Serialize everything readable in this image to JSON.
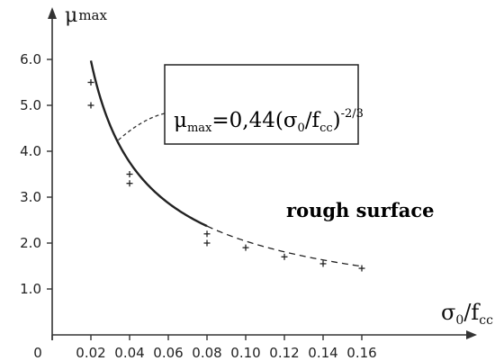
{
  "chart_data": {
    "type": "scatter",
    "title": "",
    "xlabel": {
      "main": "σ",
      "sub1": "0",
      "sep": "/f",
      "sub2": "cc"
    },
    "ylabel": {
      "main": "μ",
      "sub": "max"
    },
    "xlim": [
      0,
      0.17
    ],
    "ylim": [
      0,
      6.0
    ],
    "x_ticks": [
      "0",
      "0.02",
      "0.04",
      "0.06",
      "0.08",
      "0.10",
      "0.12",
      "0.14",
      "0.16"
    ],
    "y_ticks": [
      "1.0",
      "2.0",
      "3.0",
      "4.0",
      "5.0",
      "6.0"
    ],
    "points": [
      {
        "x": 0.02,
        "y": 5.5
      },
      {
        "x": 0.02,
        "y": 5.0
      },
      {
        "x": 0.04,
        "y": 3.3
      },
      {
        "x": 0.04,
        "y": 3.5
      },
      {
        "x": 0.08,
        "y": 2.2
      },
      {
        "x": 0.08,
        "y": 2.0
      },
      {
        "x": 0.1,
        "y": 1.9
      },
      {
        "x": 0.12,
        "y": 1.7
      },
      {
        "x": 0.14,
        "y": 1.55
      },
      {
        "x": 0.16,
        "y": 1.45
      }
    ],
    "fit": {
      "coefficient": 0.44,
      "exponent": -0.6667,
      "solid_range": [
        0.02,
        0.08
      ],
      "dashed_range": [
        0.08,
        0.16
      ]
    },
    "annotation": {
      "prefix": "μ",
      "prefix_sub": "max",
      "eq": "=0,44(σ",
      "sub1": "0",
      "mid": "/f",
      "sub2": "cc",
      "close": ")",
      "sup": "-2/3"
    },
    "series_label": "rough surface"
  }
}
